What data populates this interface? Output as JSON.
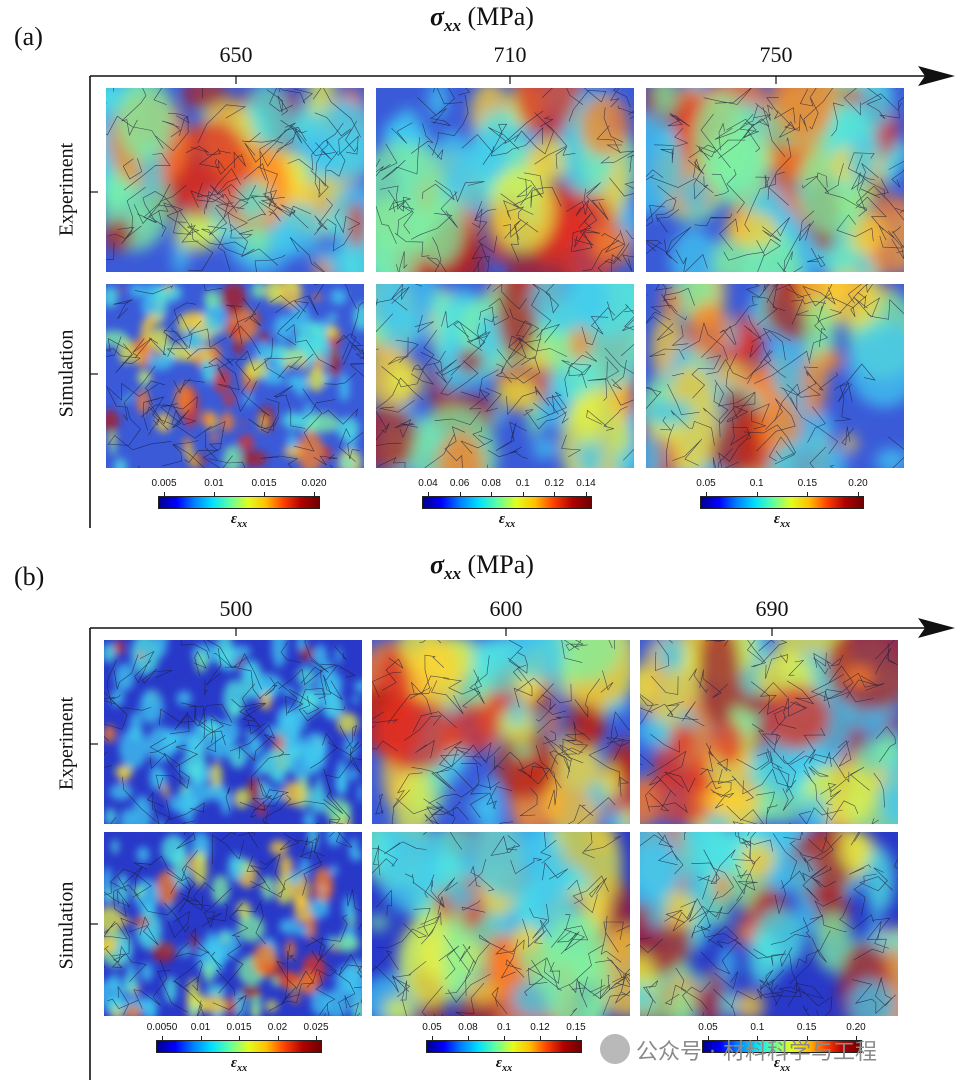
{
  "panel_a": {
    "letter": "(a)",
    "axis_symbol": "σ",
    "axis_sub": "xx",
    "axis_unit": "(MPa)",
    "stress_levels": [
      "650",
      "710",
      "750"
    ],
    "row_labels": [
      "Experiment",
      "Simulation"
    ],
    "colorbars": [
      {
        "ticks": [
          "0.005",
          "0.01",
          "0.015",
          "0.020"
        ],
        "label_symbol": "ε",
        "label_sub": "xx"
      },
      {
        "ticks": [
          "0.04",
          "0.06",
          "0.08",
          "0.1",
          "0.12",
          "0.14"
        ],
        "label_symbol": "ε",
        "label_sub": "xx"
      },
      {
        "ticks": [
          "0.05",
          "0.1",
          "0.15",
          "0.20"
        ],
        "label_symbol": "ε",
        "label_sub": "xx"
      }
    ]
  },
  "panel_b": {
    "letter": "(b)",
    "axis_symbol": "σ",
    "axis_sub": "xx",
    "axis_unit": "(MPa)",
    "stress_levels": [
      "500",
      "600",
      "690"
    ],
    "row_labels": [
      "Experiment",
      "Simulation"
    ],
    "colorbars": [
      {
        "ticks": [
          "0.0050",
          "0.01",
          "0.015",
          "0.02",
          "0.025"
        ],
        "label_symbol": "ε",
        "label_sub": "xx"
      },
      {
        "ticks": [
          "0.05",
          "0.08",
          "0.1",
          "0.12",
          "0.15"
        ],
        "label_symbol": "ε",
        "label_sub": "xx"
      },
      {
        "ticks": [
          "0.05",
          "0.1",
          "0.15",
          "0.20"
        ],
        "label_symbol": "ε",
        "label_sub": "xx"
      }
    ]
  },
  "watermark": {
    "text": "公众号 · 材料科学与工程",
    "icon": "wechat-icon"
  },
  "colors": {
    "low": "#1a1aa8",
    "mid": "#33d6e0",
    "high": "#c01010",
    "boundary": "#1c1c3c"
  }
}
